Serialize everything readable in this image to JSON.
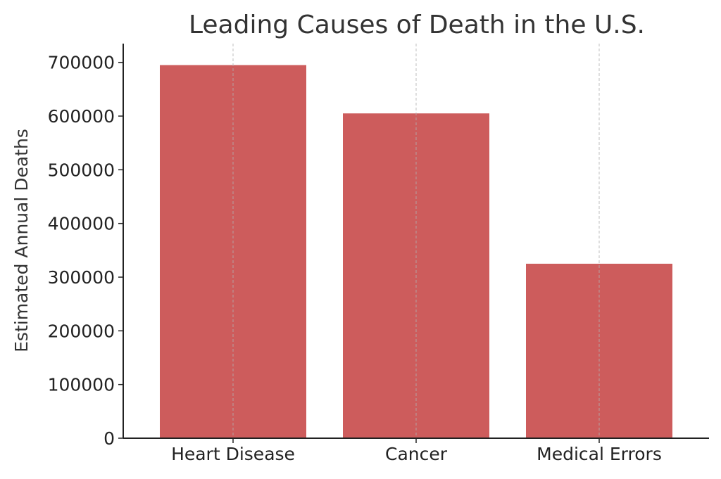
{
  "chart_data": {
    "type": "bar",
    "title": "Leading Causes of Death in the U.S.",
    "xlabel": "",
    "ylabel": "Estimated Annual Deaths",
    "categories": [
      "Heart Disease",
      "Cancer",
      "Medical Errors"
    ],
    "values": [
      695000,
      605000,
      325000
    ],
    "ylim": [
      0,
      735000
    ],
    "yticks": [
      0,
      100000,
      200000,
      300000,
      400000,
      500000,
      600000,
      700000
    ],
    "ytick_labels": [
      "0",
      "100000",
      "200000",
      "300000",
      "400000",
      "500000",
      "600000",
      "700000"
    ],
    "grid": "vertical dashed at categories",
    "bar_color": "#cd5c5c",
    "legend": "none"
  }
}
